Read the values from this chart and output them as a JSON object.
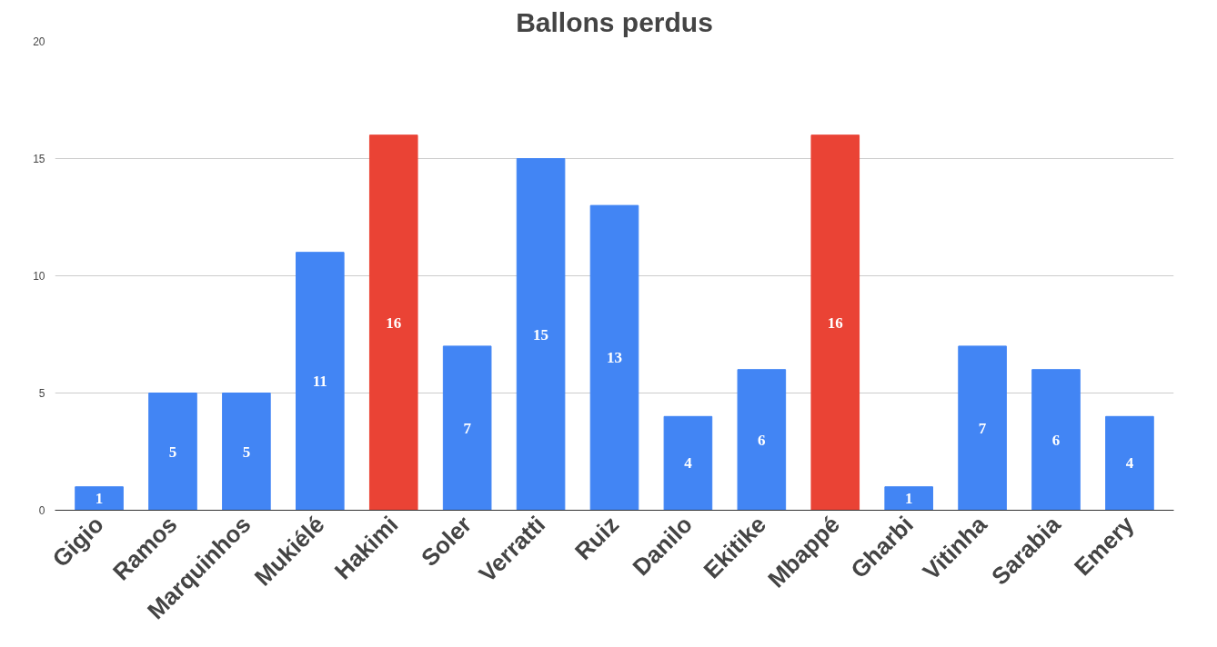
{
  "chart_data": {
    "type": "bar",
    "title": "Ballons perdus",
    "categories": [
      "Gigio",
      "Ramos",
      "Marquinhos",
      "Mukiélé",
      "Hakimi",
      "Soler",
      "Verratti",
      "Ruiz",
      "Danilo",
      "Ekitike",
      "Mbappé",
      "Gharbi",
      "Vitinha",
      "Sarabia",
      "Emery"
    ],
    "values": [
      1,
      5,
      5,
      11,
      16,
      7,
      15,
      13,
      4,
      6,
      16,
      1,
      7,
      6,
      4
    ],
    "colors": [
      "#4285f4",
      "#4285f4",
      "#4285f4",
      "#4285f4",
      "#ea4335",
      "#4285f4",
      "#4285f4",
      "#4285f4",
      "#4285f4",
      "#4285f4",
      "#ea4335",
      "#4285f4",
      "#4285f4",
      "#4285f4",
      "#4285f4"
    ],
    "ylim": [
      0,
      20
    ],
    "yticks": [
      0,
      5,
      10,
      15,
      20
    ],
    "grid": "y",
    "data_labels": true
  }
}
